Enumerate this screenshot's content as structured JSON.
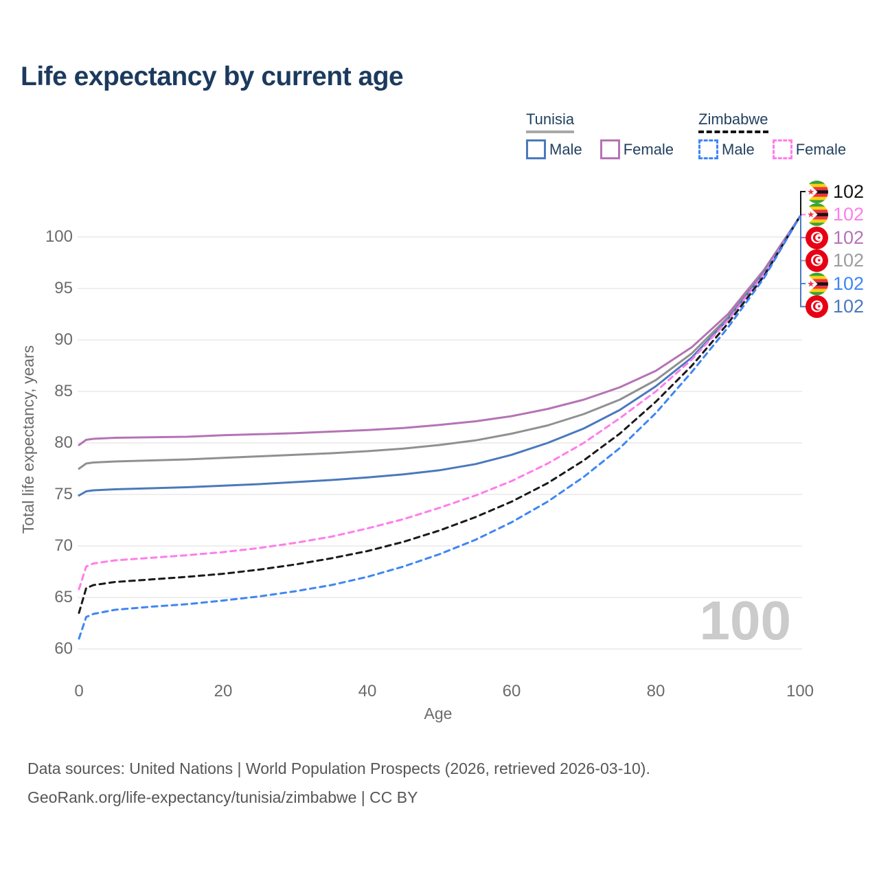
{
  "title": "Life expectancy by current age",
  "legend": {
    "groups": [
      {
        "name": "Tunisia",
        "underline_style": "solid",
        "underline_color": "#a8a8a8",
        "items": [
          {
            "label": "Male",
            "color": "#4a79bd",
            "dash": false
          },
          {
            "label": "Female",
            "color": "#b573b5",
            "dash": false
          }
        ]
      },
      {
        "name": "Zimbabwe",
        "underline_style": "dashed",
        "underline_color": "#141414",
        "items": [
          {
            "label": "Male",
            "color": "#3e86f4",
            "dash": true
          },
          {
            "label": "Female",
            "color": "#ff7deb",
            "dash": true
          }
        ]
      }
    ]
  },
  "chart_data": {
    "type": "line",
    "title": "Life expectancy by current age",
    "xlabel": "Age",
    "ylabel": "Total life expectancy, years",
    "xlim": [
      0,
      100
    ],
    "ylim": [
      60,
      102
    ],
    "x_ticks": [
      0,
      20,
      40,
      60,
      80,
      100
    ],
    "y_ticks": [
      60,
      65,
      70,
      75,
      80,
      85,
      90,
      95,
      100
    ],
    "grid": "horizontal",
    "legend_position": "top-right",
    "series": [
      {
        "name": "Tunisia Female",
        "country": "Tunisia",
        "sex": "Female",
        "color": "#b573b5",
        "dash": false,
        "points": [
          [
            0,
            79.8
          ],
          [
            1,
            80.3
          ],
          [
            2,
            80.4
          ],
          [
            5,
            80.5
          ],
          [
            10,
            80.55
          ],
          [
            15,
            80.6
          ],
          [
            20,
            80.75
          ],
          [
            25,
            80.85
          ],
          [
            30,
            80.95
          ],
          [
            35,
            81.1
          ],
          [
            40,
            81.25
          ],
          [
            45,
            81.45
          ],
          [
            50,
            81.75
          ],
          [
            55,
            82.1
          ],
          [
            60,
            82.6
          ],
          [
            65,
            83.3
          ],
          [
            70,
            84.2
          ],
          [
            75,
            85.4
          ],
          [
            80,
            87.0
          ],
          [
            85,
            89.3
          ],
          [
            90,
            92.5
          ],
          [
            95,
            96.8
          ],
          [
            100,
            102
          ]
        ]
      },
      {
        "name": "Tunisia (both sexes)",
        "country": "Tunisia",
        "sex": "Both",
        "color": "#909090",
        "dash": false,
        "points": [
          [
            0,
            77.5
          ],
          [
            1,
            78.0
          ],
          [
            2,
            78.1
          ],
          [
            5,
            78.2
          ],
          [
            10,
            78.3
          ],
          [
            15,
            78.4
          ],
          [
            20,
            78.55
          ],
          [
            25,
            78.7
          ],
          [
            30,
            78.85
          ],
          [
            35,
            79.0
          ],
          [
            40,
            79.2
          ],
          [
            45,
            79.45
          ],
          [
            50,
            79.8
          ],
          [
            55,
            80.25
          ],
          [
            60,
            80.9
          ],
          [
            65,
            81.7
          ],
          [
            70,
            82.8
          ],
          [
            75,
            84.2
          ],
          [
            80,
            86.1
          ],
          [
            85,
            88.7
          ],
          [
            90,
            92.2
          ],
          [
            95,
            96.6
          ],
          [
            100,
            102
          ]
        ]
      },
      {
        "name": "Tunisia Male",
        "country": "Tunisia",
        "sex": "Male",
        "color": "#4a79bd",
        "dash": false,
        "points": [
          [
            0,
            74.9
          ],
          [
            1,
            75.3
          ],
          [
            2,
            75.4
          ],
          [
            5,
            75.5
          ],
          [
            10,
            75.6
          ],
          [
            15,
            75.7
          ],
          [
            20,
            75.85
          ],
          [
            25,
            76.0
          ],
          [
            30,
            76.2
          ],
          [
            35,
            76.4
          ],
          [
            40,
            76.65
          ],
          [
            45,
            76.95
          ],
          [
            50,
            77.35
          ],
          [
            55,
            77.95
          ],
          [
            60,
            78.85
          ],
          [
            65,
            80.0
          ],
          [
            70,
            81.4
          ],
          [
            75,
            83.2
          ],
          [
            80,
            85.5
          ],
          [
            85,
            88.3
          ],
          [
            90,
            92.0
          ],
          [
            95,
            96.5
          ],
          [
            100,
            102
          ]
        ]
      },
      {
        "name": "Zimbabwe Female",
        "country": "Zimbabwe",
        "sex": "Female",
        "color": "#ff7deb",
        "dash": true,
        "points": [
          [
            0,
            65.8
          ],
          [
            1,
            68.0
          ],
          [
            2,
            68.3
          ],
          [
            5,
            68.6
          ],
          [
            10,
            68.85
          ],
          [
            15,
            69.1
          ],
          [
            20,
            69.4
          ],
          [
            25,
            69.8
          ],
          [
            30,
            70.3
          ],
          [
            35,
            70.9
          ],
          [
            40,
            71.7
          ],
          [
            45,
            72.6
          ],
          [
            50,
            73.7
          ],
          [
            55,
            74.9
          ],
          [
            60,
            76.3
          ],
          [
            65,
            78.0
          ],
          [
            70,
            80.0
          ],
          [
            75,
            82.4
          ],
          [
            80,
            85.0
          ],
          [
            85,
            88.1
          ],
          [
            90,
            91.9
          ],
          [
            95,
            96.4
          ],
          [
            100,
            102
          ]
        ]
      },
      {
        "name": "Zimbabwe (both sexes)",
        "country": "Zimbabwe",
        "sex": "Both",
        "color": "#1a1a1a",
        "dash": true,
        "points": [
          [
            0,
            63.5
          ],
          [
            1,
            65.9
          ],
          [
            2,
            66.2
          ],
          [
            5,
            66.5
          ],
          [
            10,
            66.75
          ],
          [
            15,
            67.0
          ],
          [
            20,
            67.3
          ],
          [
            25,
            67.7
          ],
          [
            30,
            68.2
          ],
          [
            35,
            68.8
          ],
          [
            40,
            69.5
          ],
          [
            45,
            70.4
          ],
          [
            50,
            71.5
          ],
          [
            55,
            72.8
          ],
          [
            60,
            74.3
          ],
          [
            65,
            76.1
          ],
          [
            70,
            78.3
          ],
          [
            75,
            80.9
          ],
          [
            80,
            84.0
          ],
          [
            85,
            87.5
          ],
          [
            90,
            91.6
          ],
          [
            95,
            96.2
          ],
          [
            100,
            102
          ]
        ]
      },
      {
        "name": "Zimbabwe Male",
        "country": "Zimbabwe",
        "sex": "Male",
        "color": "#3e86f4",
        "dash": true,
        "points": [
          [
            0,
            61.0
          ],
          [
            1,
            63.1
          ],
          [
            2,
            63.4
          ],
          [
            5,
            63.8
          ],
          [
            10,
            64.1
          ],
          [
            15,
            64.35
          ],
          [
            20,
            64.7
          ],
          [
            25,
            65.1
          ],
          [
            30,
            65.6
          ],
          [
            35,
            66.2
          ],
          [
            40,
            67.0
          ],
          [
            45,
            68.0
          ],
          [
            50,
            69.2
          ],
          [
            55,
            70.6
          ],
          [
            60,
            72.3
          ],
          [
            65,
            74.3
          ],
          [
            70,
            76.7
          ],
          [
            75,
            79.5
          ],
          [
            80,
            82.9
          ],
          [
            85,
            86.9
          ],
          [
            90,
            91.2
          ],
          [
            95,
            96.0
          ],
          [
            100,
            102
          ]
        ]
      }
    ]
  },
  "end_labels": [
    {
      "flag": "zimbabwe",
      "value": "102",
      "color": "#141414",
      "series": "Zimbabwe (both sexes)"
    },
    {
      "flag": "zimbabwe",
      "value": "102",
      "color": "#ff7deb",
      "series": "Zimbabwe Female"
    },
    {
      "flag": "tunisia",
      "value": "102",
      "color": "#b573b5",
      "series": "Tunisia Female"
    },
    {
      "flag": "tunisia",
      "value": "102",
      "color": "#9c9c9c",
      "series": "Tunisia (both sexes)"
    },
    {
      "flag": "zimbabwe",
      "value": "102",
      "color": "#3e86f4",
      "series": "Zimbabwe Male"
    },
    {
      "flag": "tunisia",
      "value": "102",
      "color": "#4a79bd",
      "series": "Tunisia Male"
    }
  ],
  "watermark_age": "100",
  "footer": {
    "line1": "Data sources: United Nations | World Population Prospects (2026, retrieved 2026-03-10).",
    "line2": "GeoRank.org/life-expectancy/tunisia/zimbabwe | CC BY"
  }
}
